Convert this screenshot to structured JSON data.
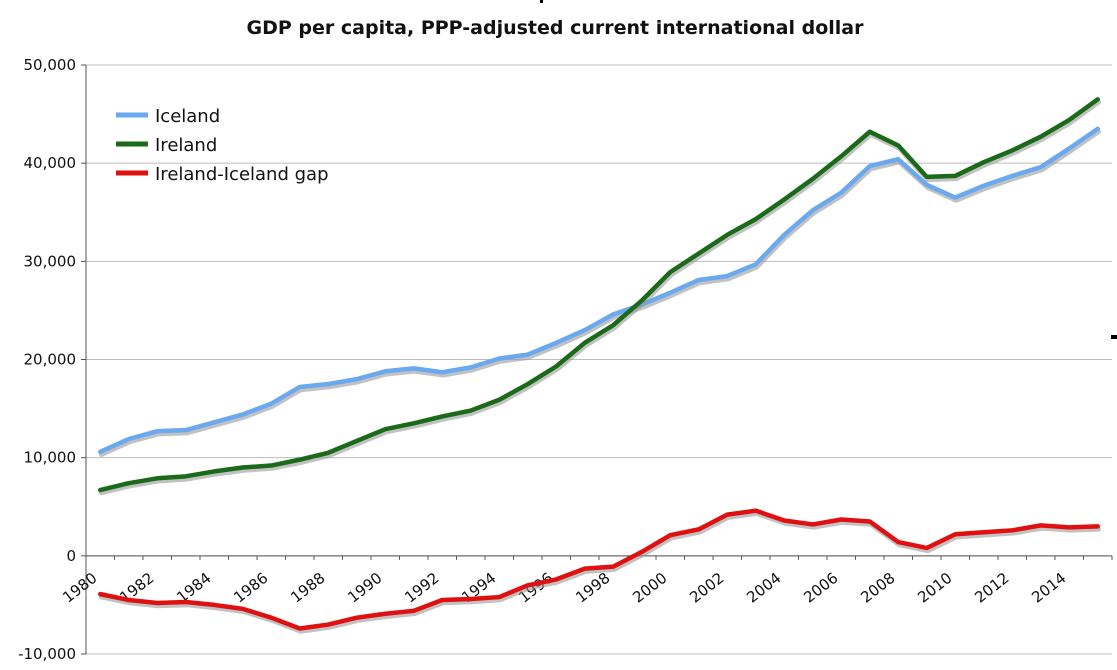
{
  "chart_data": {
    "type": "line",
    "title": "GDP per capita, PPP-adjusted current international dollar",
    "xlabel": "",
    "ylabel": "",
    "ylim": [
      -10000,
      50000
    ],
    "yticks": [
      -10000,
      0,
      10000,
      20000,
      30000,
      40000,
      50000
    ],
    "ytick_labels": [
      "-10,000",
      "0",
      "10,000",
      "20,000",
      "30,000",
      "40,000",
      "50,000"
    ],
    "xticks": [
      1980,
      1982,
      1984,
      1986,
      1988,
      1990,
      1992,
      1994,
      1996,
      1998,
      2000,
      2002,
      2004,
      2006,
      2008,
      2010,
      2012,
      2014
    ],
    "xtick_labels": [
      "1980",
      "1982",
      "1984",
      "1986",
      "1988",
      "1990",
      "1992",
      "1994",
      "1996",
      "1998",
      "2000",
      "2002",
      "2004",
      "2006",
      "2008",
      "2010",
      "2012",
      "2014"
    ],
    "xlim": [
      1980,
      2016
    ],
    "x": [
      1980,
      1981,
      1982,
      1983,
      1984,
      1985,
      1986,
      1987,
      1988,
      1989,
      1990,
      1991,
      1992,
      1993,
      1994,
      1995,
      1996,
      1997,
      1998,
      1999,
      2000,
      2001,
      2002,
      2003,
      2004,
      2005,
      2006,
      2007,
      2008,
      2009,
      2010,
      2011,
      2012,
      2013,
      2014,
      2015
    ],
    "grid": true,
    "legend_position": "top-left",
    "series": [
      {
        "name": "Iceland",
        "color": "#6aa8f0",
        "values": [
          10600,
          11900,
          12700,
          12800,
          13600,
          14400,
          15500,
          17200,
          17500,
          18000,
          18800,
          19100,
          18700,
          19200,
          20100,
          20500,
          21700,
          23000,
          24600,
          25600,
          26800,
          28100,
          28500,
          29700,
          32700,
          35200,
          37000,
          39700,
          40400,
          37800,
          36500,
          37700,
          38700,
          39600,
          41500,
          43500
        ]
      },
      {
        "name": "Ireland",
        "color": "#1a6a1a",
        "values": [
          6700,
          7400,
          7900,
          8100,
          8600,
          9000,
          9200,
          9800,
          10500,
          11700,
          12900,
          13500,
          14200,
          14800,
          15900,
          17500,
          19300,
          21700,
          23500,
          26000,
          28900,
          30800,
          32700,
          34300,
          36300,
          38400,
          40700,
          43200,
          41800,
          38600,
          38700,
          40100,
          41300,
          42700,
          44400,
          46500
        ]
      },
      {
        "name": "Ireland-Iceland gap",
        "color": "#e01010",
        "values": [
          -3900,
          -4500,
          -4800,
          -4700,
          -5000,
          -5400,
          -6300,
          -7400,
          -7000,
          -6300,
          -5900,
          -5600,
          -4500,
          -4400,
          -4200,
          -3000,
          -2400,
          -1300,
          -1100,
          400,
          2100,
          2700,
          4200,
          4600,
          3600,
          3200,
          3700,
          3500,
          1400,
          800,
          2200,
          2400,
          2600,
          3100,
          2900,
          3000
        ]
      }
    ]
  }
}
